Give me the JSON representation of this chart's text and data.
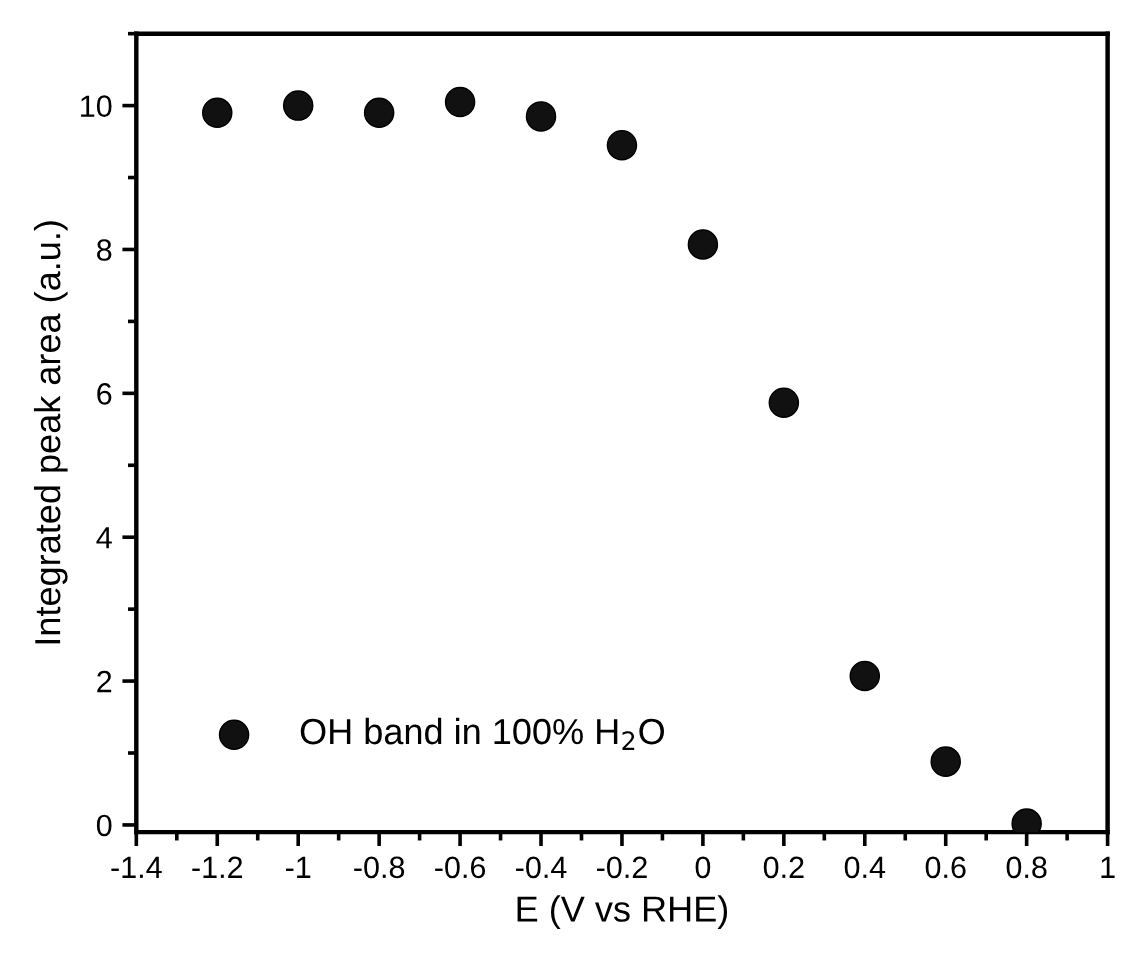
{
  "chart_data": {
    "type": "scatter",
    "xlabel": "E (V vs RHE)",
    "ylabel": "Integrated peak area (a.u.)",
    "x": [
      -1.2,
      -1.0,
      -0.8,
      -0.6,
      -0.4,
      -0.2,
      0.0,
      0.2,
      0.4,
      0.6,
      0.8
    ],
    "series": [
      {
        "name": "OH band in 100% H$_{2}$O",
        "color": "#111111",
        "values": [
          9.9,
          10.0,
          9.9,
          10.05,
          9.85,
          9.45,
          8.07,
          5.87,
          2.07,
          0.88,
          0.02
        ]
      }
    ],
    "xlim": [
      -1.4,
      1.0
    ],
    "ylim": [
      -0.1,
      11
    ],
    "xticks": [
      -1.4,
      -1.2,
      -1,
      -0.8,
      -0.6,
      -0.4,
      -0.2,
      0,
      0.2,
      0.4,
      0.6,
      0.8,
      1
    ],
    "yticks": [
      0,
      2,
      4,
      6,
      8,
      10
    ],
    "marker": "circle",
    "legend": "bottom left",
    "grid": false
  }
}
